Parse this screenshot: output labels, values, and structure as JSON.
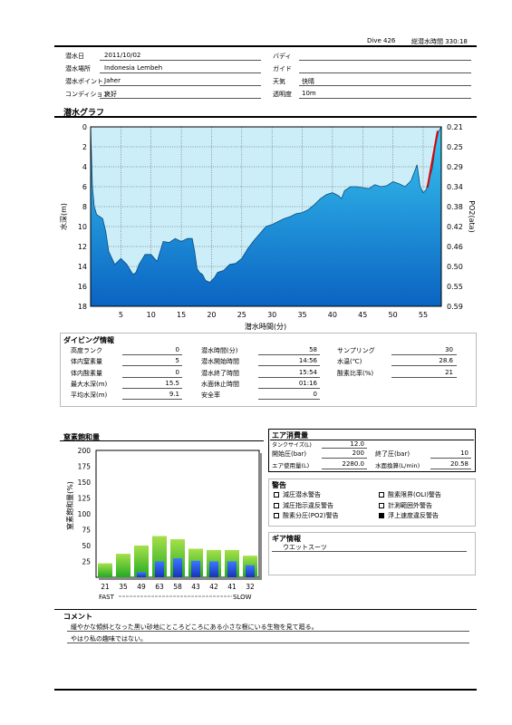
{
  "header": {
    "dive_label": "Dive 426",
    "total_label": "総潜水時間 330:18"
  },
  "info": {
    "date": {
      "label": "潜水日",
      "value": "2011/10/02"
    },
    "place": {
      "label": "潜水場所",
      "value": "Indonesia Lembeh"
    },
    "point": {
      "label": "潜水ポイント",
      "value": "Jaher"
    },
    "condition": {
      "label": "コンディション",
      "value": "良好"
    },
    "buddy": {
      "label": "バディ",
      "value": ""
    },
    "guide": {
      "label": "ガイド",
      "value": ""
    },
    "weather": {
      "label": "天気",
      "value": "快晴"
    },
    "visibility": {
      "label": "透明度",
      "value": "10m"
    }
  },
  "graph_section_title": "潜水グラフ",
  "chart_data": {
    "type": "area",
    "xlabel": "潜水時間(分)",
    "ylabel": "水深(m)",
    "y2label": "PO2(ata)",
    "xlim": [
      0,
      58
    ],
    "ylim": [
      0,
      18
    ],
    "xticks": [
      5,
      10,
      15,
      20,
      25,
      30,
      35,
      40,
      45,
      50,
      55
    ],
    "yticks": [
      0,
      2,
      4,
      6,
      8,
      10,
      12,
      14,
      16,
      18
    ],
    "y2ticks": [
      "0.21",
      "0.25",
      "0.29",
      "0.34",
      "0.38",
      "0.42",
      "0.46",
      "0.50",
      "0.55",
      "0.59"
    ],
    "depth_profile": [
      [
        0,
        0
      ],
      [
        0.3,
        6
      ],
      [
        0.6,
        8
      ],
      [
        1,
        8.8
      ],
      [
        1.5,
        9
      ],
      [
        2,
        9.2
      ],
      [
        2.5,
        10.5
      ],
      [
        3,
        12.5
      ],
      [
        4,
        13.8
      ],
      [
        5,
        13.2
      ],
      [
        6,
        13.8
      ],
      [
        7,
        14.8
      ],
      [
        7.5,
        14.6
      ],
      [
        8,
        13.8
      ],
      [
        9,
        12.8
      ],
      [
        10,
        12.8
      ],
      [
        11,
        13.5
      ],
      [
        11.5,
        12.5
      ],
      [
        12,
        11.5
      ],
      [
        13,
        11.6
      ],
      [
        14,
        11.2
      ],
      [
        15,
        11.5
      ],
      [
        16,
        11.2
      ],
      [
        16.8,
        11.2
      ],
      [
        17.2,
        12.5
      ],
      [
        17.6,
        14.2
      ],
      [
        18,
        14.6
      ],
      [
        18.5,
        14.8
      ],
      [
        19,
        15.4
      ],
      [
        19.7,
        15.6
      ],
      [
        20.5,
        15.1
      ],
      [
        21,
        14.6
      ],
      [
        22,
        14.4
      ],
      [
        23,
        13.8
      ],
      [
        24,
        13.7
      ],
      [
        25,
        13.2
      ],
      [
        26,
        12.2
      ],
      [
        27,
        11.4
      ],
      [
        28,
        10.7
      ],
      [
        29,
        10
      ],
      [
        30,
        9.8
      ],
      [
        31,
        9.5
      ],
      [
        32,
        9.2
      ],
      [
        33,
        9
      ],
      [
        34,
        8.7
      ],
      [
        35,
        8.6
      ],
      [
        36,
        8.3
      ],
      [
        37,
        7.8
      ],
      [
        38,
        7.2
      ],
      [
        39,
        6.8
      ],
      [
        40,
        6.6
      ],
      [
        41,
        6.9
      ],
      [
        41.5,
        7.2
      ],
      [
        42,
        6.4
      ],
      [
        43,
        6
      ],
      [
        44,
        6
      ],
      [
        45,
        6.1
      ],
      [
        46,
        6.2
      ],
      [
        47,
        5.8
      ],
      [
        48,
        6
      ],
      [
        49,
        5.9
      ],
      [
        50,
        5.5
      ],
      [
        51,
        5.7
      ],
      [
        52,
        6
      ],
      [
        53,
        5.4
      ],
      [
        54,
        3.8
      ],
      [
        54.5,
        6
      ],
      [
        55,
        6.6
      ],
      [
        55.5,
        6.3
      ],
      [
        56,
        5.2
      ],
      [
        56.5,
        4.2
      ],
      [
        57,
        2
      ],
      [
        57.5,
        0.5
      ],
      [
        58,
        0
      ]
    ],
    "ascent_warning": [
      [
        55.7,
        6.1
      ],
      [
        57.4,
        0.4
      ]
    ],
    "colors": {
      "fill_top": "#39c6f0",
      "fill_bottom": "#0a63c2",
      "line": "#0a4a7a",
      "background": "#cceef8",
      "warning": "#dd0000"
    }
  },
  "dive_info": {
    "title": "ダイビング情報",
    "col1": [
      {
        "label": "高度ランク",
        "value": "0"
      },
      {
        "label": "体内窒素量",
        "value": "5"
      },
      {
        "label": "体内酸素量",
        "value": "0"
      },
      {
        "label": "最大水深(m)",
        "value": "15.5"
      },
      {
        "label": "平均水深(m)",
        "value": "9.1"
      }
    ],
    "col2": [
      {
        "label": "潜水時間(分)",
        "value": "58"
      },
      {
        "label": "潜水開始時間",
        "value": "14:56"
      },
      {
        "label": "潜水終了時間",
        "value": "15:54"
      },
      {
        "label": "水面休止時間",
        "value": "01:16"
      },
      {
        "label": "安全率",
        "value": "0"
      }
    ],
    "col3": [
      {
        "label": "サンプリング",
        "value": "30"
      },
      {
        "label": "水温(℃)",
        "value": "28.6"
      },
      {
        "label": "酸素比率(%)",
        "value": "21"
      }
    ]
  },
  "nitrogen": {
    "title": "窒素飽和量",
    "ylabel": "窒素飽和量(%)",
    "yticks": [
      25,
      50,
      75,
      100,
      125,
      150,
      175,
      200
    ],
    "ymax": 200,
    "categories": [
      "21",
      "35",
      "49",
      "63",
      "58",
      "43",
      "42",
      "41",
      "32"
    ],
    "green_values": [
      22,
      37,
      50,
      65,
      60,
      45,
      43,
      43,
      34
    ],
    "blue_values": [
      0,
      0,
      8,
      25,
      30,
      26,
      25,
      25,
      19
    ],
    "fast_label": "FAST",
    "slow_label": "SLOW",
    "colors": {
      "green_top": "#a6e04a",
      "green_bottom": "#22aa22",
      "blue_top": "#3a78ff",
      "blue_bottom": "#1833b8"
    }
  },
  "air": {
    "title": "エア消費量",
    "tank": {
      "label": "タンクサイズ(L)",
      "value": "12.0"
    },
    "start": {
      "label": "開始圧(bar)",
      "value": "200"
    },
    "end": {
      "label": "終了圧(bar)",
      "value": "10"
    },
    "used": {
      "label": "エア使用量(L)",
      "value": "2280.0"
    },
    "surface": {
      "label": "水面換算(L/min)",
      "value": "20.58"
    }
  },
  "warnings": {
    "title": "警告",
    "items": [
      {
        "label": "減圧潜水警告",
        "checked": false
      },
      {
        "label": "酸素限界(OLI)警告",
        "checked": false
      },
      {
        "label": "減圧指示違反警告",
        "checked": false
      },
      {
        "label": "計測範囲外警告",
        "checked": false
      },
      {
        "label": "酸素分圧(PO2)警告",
        "checked": false
      },
      {
        "label": "浮上速度違反警告",
        "checked": true
      }
    ]
  },
  "gear": {
    "title": "ギア情報",
    "value": "ウエットスーツ"
  },
  "comment": {
    "title": "コメント",
    "lines": [
      "緩やかな傾斜となった黒い砂地にところどころにある小さな根にいる生物を見て廻る。",
      "やはり私の趣味ではない。"
    ]
  }
}
